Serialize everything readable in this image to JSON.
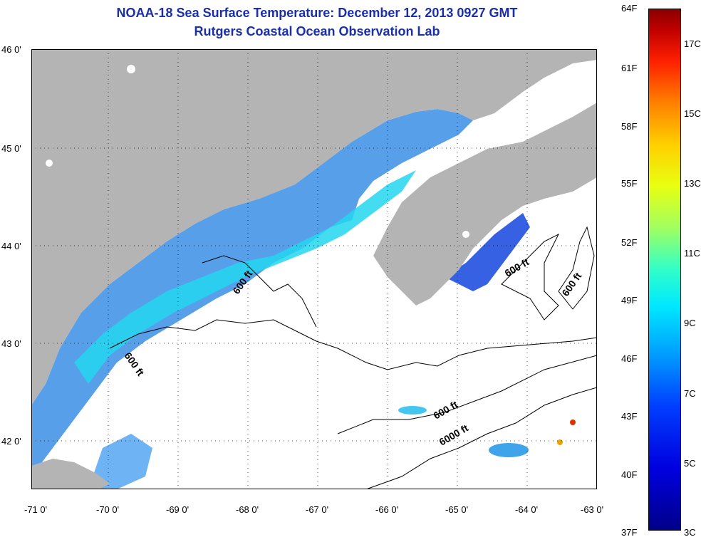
{
  "title_line1": "NOAA-18 Sea Surface Temperature:  December 12, 2013 0927 GMT",
  "title_line2": "Rutgers Coastal Ocean Observation Lab",
  "lat_labels": [
    "46 0'",
    "45 0'",
    "44 0'",
    "43 0'",
    "42 0'"
  ],
  "lon_labels": [
    "-71 0'",
    "-70 0'",
    "-69 0'",
    "-68 0'",
    "-67 0'",
    "-66 0'",
    "-65 0'",
    "-64 0'",
    "-63 0'"
  ],
  "colorbar_f": [
    "64F",
    "61F",
    "58F",
    "55F",
    "52F",
    "49F",
    "46F",
    "43F",
    "40F",
    "37F"
  ],
  "colorbar_c": [
    "17C",
    "15C",
    "13C",
    "11C",
    "9C",
    "7C",
    "5C",
    "3C"
  ],
  "contour_labels": [
    "600 ft",
    "600 ft",
    "600 ft",
    "600 ft",
    "600 ft",
    "6000 ft"
  ],
  "colors": {
    "land": "#b4b4b4",
    "title": "#1a2fa8",
    "sea_cold": "#1040e0",
    "sea_warm": "#20e0f0"
  }
}
